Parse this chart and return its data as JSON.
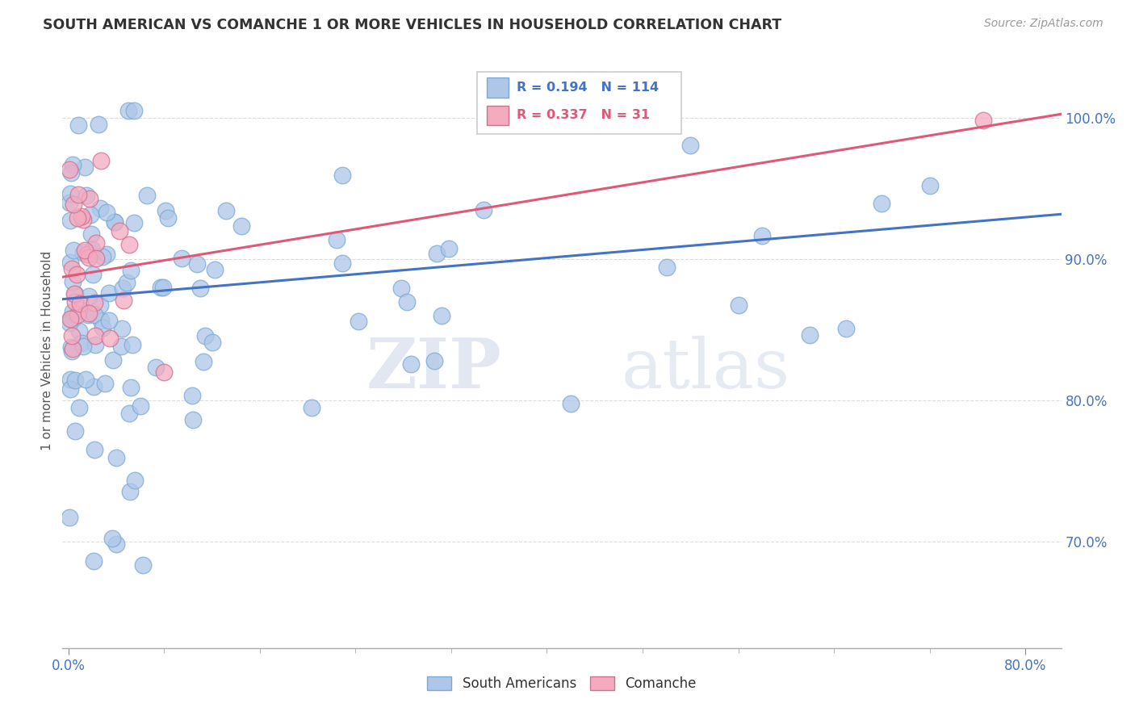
{
  "title": "SOUTH AMERICAN VS COMANCHE 1 OR MORE VEHICLES IN HOUSEHOLD CORRELATION CHART",
  "source": "Source: ZipAtlas.com",
  "ylabel_label": "1 or more Vehicles in Household",
  "legend_label_blue": "South Americans",
  "legend_label_pink": "Comanche",
  "R_blue": 0.194,
  "N_blue": 114,
  "R_pink": 0.337,
  "N_pink": 31,
  "blue_color": "#aec6e8",
  "blue_edge_color": "#7aaad4",
  "blue_line_color": "#4472c4",
  "pink_color": "#f4aabf",
  "pink_edge_color": "#d07090",
  "pink_line_color": "#e05878",
  "xlim_min": -0.005,
  "xlim_max": 0.83,
  "ylim_min": 0.625,
  "ylim_max": 1.045,
  "ytick_values": [
    0.7,
    0.8,
    0.9,
    1.0
  ],
  "ytick_labels": [
    "70.0%",
    "80.0%",
    "90.0%",
    "100.0%"
  ],
  "xtick_values": [
    0.0,
    0.8
  ],
  "xtick_labels": [
    "0.0%",
    "80.0%"
  ],
  "watermark_zip": "ZIP",
  "watermark_atlas": "atlas",
  "bg_color": "#ffffff",
  "grid_color": "#d8d8d8",
  "blue_intercept": 0.872,
  "blue_slope": 0.072,
  "pink_intercept": 0.888,
  "pink_slope": 0.138
}
